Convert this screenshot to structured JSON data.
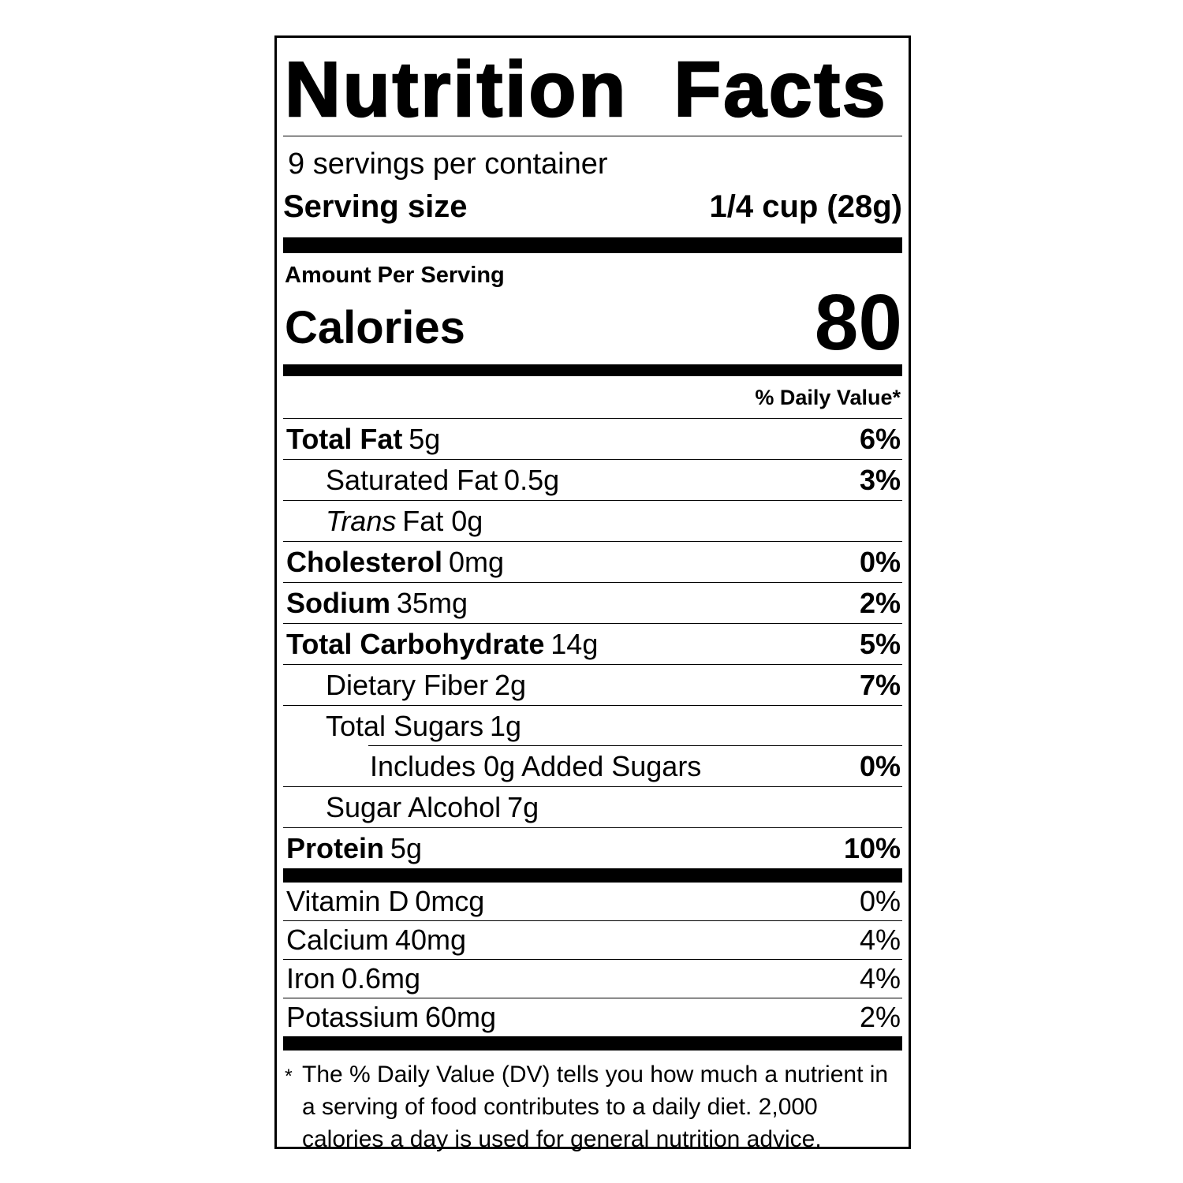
{
  "colors": {
    "text": "#000000",
    "background": "#ffffff"
  },
  "label": {
    "title": "Nutrition Facts",
    "servings_per_container": "9 servings per container",
    "serving_size": {
      "label": "Serving size",
      "value": "1/4 cup (28g)"
    },
    "amount_per_serving": "Amount Per Serving",
    "calories": {
      "label": "Calories",
      "value": "80"
    },
    "daily_value_header": "% Daily Value*",
    "nutrients": [
      {
        "name": "Total Fat",
        "amount": "5g",
        "dv": "6%"
      },
      {
        "name": "Saturated Fat",
        "amount": "0.5g",
        "dv": "3%"
      },
      {
        "name": "Trans",
        "amount": "Fat 0g",
        "dv": ""
      },
      {
        "name": "Cholesterol",
        "amount": "0mg",
        "dv": "0%"
      },
      {
        "name": "Sodium",
        "amount": "35mg",
        "dv": "2%"
      },
      {
        "name": "Total Carbohydrate",
        "amount": "14g",
        "dv": "5%"
      },
      {
        "name": "Dietary Fiber",
        "amount": "2g",
        "dv": "7%"
      },
      {
        "name": "Total Sugars",
        "amount": "1g",
        "dv": ""
      },
      {
        "name": "Includes 0g Added Sugars",
        "amount": "",
        "dv": "0%"
      },
      {
        "name": "Sugar Alcohol",
        "amount": "7g",
        "dv": ""
      },
      {
        "name": "Protein",
        "amount": "5g",
        "dv": "10%"
      }
    ],
    "micronutrients": [
      {
        "name": "Vitamin D",
        "amount": "0mcg",
        "dv": "0%"
      },
      {
        "name": "Calcium",
        "amount": "40mg",
        "dv": "4%"
      },
      {
        "name": "Iron",
        "amount": "0.6mg",
        "dv": "4%"
      },
      {
        "name": "Potassium",
        "amount": "60mg",
        "dv": "2%"
      }
    ],
    "footnote": {
      "marker": "*",
      "text": "The % Daily Value (DV) tells you how much a nutrient in a serving of food contributes to a daily diet. 2,000 calories a day is used for general nutrition advice."
    }
  }
}
